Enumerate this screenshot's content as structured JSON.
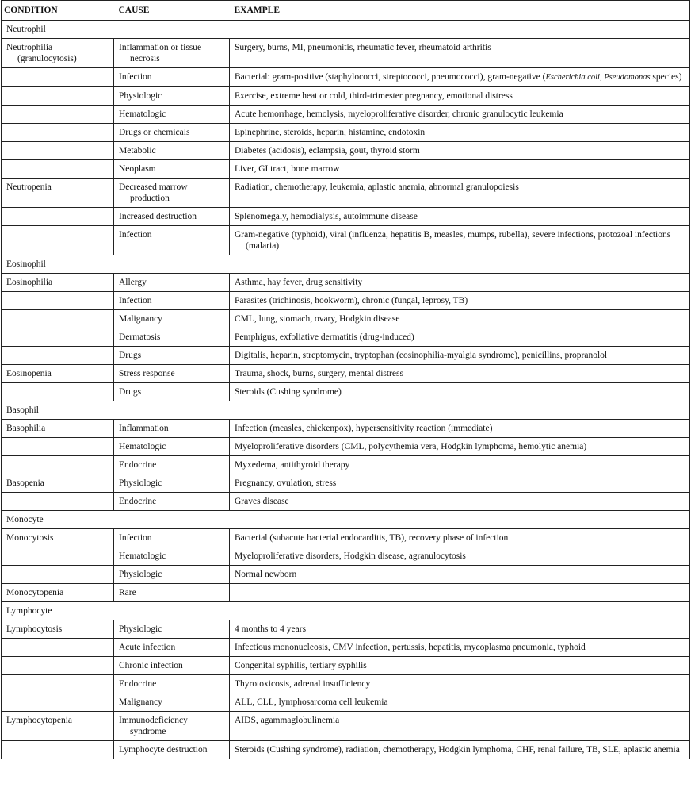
{
  "headers": {
    "condition": "CONDITION",
    "cause": "CAUSE",
    "example": "EXAMPLE"
  },
  "rows": [
    {
      "section": "Neutrophil"
    },
    {
      "condition": "Neutrophilia (granulocytosis)",
      "cause": "Inflammation or tissue necrosis",
      "example": "Surgery, burns, MI, pneumonitis, rheumatic fever, rheumatoid arthritis"
    },
    {
      "condition": "",
      "cause": "Infection",
      "example": "Bacterial: gram-positive (staphylococci, streptococci, pneumococci), gram-negative (",
      "example_italic": "Escherichia coli, Pseudomonas",
      "example_after": " species)"
    },
    {
      "condition": "",
      "cause": "Physiologic",
      "example": "Exercise, extreme heat or cold, third-trimester pregnancy, emotional distress"
    },
    {
      "condition": "",
      "cause": "Hematologic",
      "example": "Acute hemorrhage, hemolysis, myeloproliferative disorder, chronic granulocytic leukemia"
    },
    {
      "condition": "",
      "cause": "Drugs or chemicals",
      "example": "Epinephrine, steroids, heparin, histamine, endotoxin"
    },
    {
      "condition": "",
      "cause": "Metabolic",
      "example": "Diabetes (acidosis), eclampsia, gout, thyroid storm"
    },
    {
      "condition": "",
      "cause": "Neoplasm",
      "example": "Liver, GI tract, bone marrow"
    },
    {
      "condition": "Neutropenia",
      "cause": "Decreased marrow production",
      "example": "Radiation, chemotherapy, leukemia, aplastic anemia, abnormal granulopoiesis"
    },
    {
      "condition": "",
      "cause": "Increased destruction",
      "example": "Splenomegaly, hemodialysis, autoimmune disease"
    },
    {
      "condition": "",
      "cause": "Infection",
      "example": "Gram-negative (typhoid), viral (influenza, hepatitis B, measles, mumps, rubella), severe infections, protozoal infections (malaria)"
    },
    {
      "section": "Eosinophil"
    },
    {
      "condition": "Eosinophilia",
      "cause": "Allergy",
      "example": "Asthma, hay fever, drug sensitivity"
    },
    {
      "condition": "",
      "cause": "Infection",
      "example": "Parasites (trichinosis, hookworm), chronic (fungal, leprosy, TB)"
    },
    {
      "condition": "",
      "cause": "Malignancy",
      "example": "CML, lung, stomach, ovary, Hodgkin disease"
    },
    {
      "condition": "",
      "cause": "Dermatosis",
      "example": "Pemphigus, exfoliative dermatitis (drug-induced)"
    },
    {
      "condition": "",
      "cause": "Drugs",
      "example": "Digitalis, heparin, streptomycin, tryptophan (eosinophilia-myalgia syndrome), penicillins, propranolol"
    },
    {
      "condition": "Eosinopenia",
      "cause": "Stress response",
      "example": "Trauma, shock, burns, surgery, mental distress"
    },
    {
      "condition": "",
      "cause": "Drugs",
      "example": "Steroids (Cushing syndrome)"
    },
    {
      "section": "Basophil"
    },
    {
      "condition": "Basophilia",
      "cause": "Inflammation",
      "example": "Infection (measles, chickenpox), hypersensitivity reaction (immediate)"
    },
    {
      "condition": "",
      "cause": "Hematologic",
      "example": "Myeloproliferative disorders (CML, polycythemia vera, Hodgkin lymphoma, hemolytic anemia)"
    },
    {
      "condition": "",
      "cause": "Endocrine",
      "example": "Myxedema, antithyroid therapy"
    },
    {
      "condition": "Basopenia",
      "cause": "Physiologic",
      "example": "Pregnancy, ovulation, stress"
    },
    {
      "condition": "",
      "cause": "Endocrine",
      "example": "Graves disease"
    },
    {
      "section": "Monocyte"
    },
    {
      "condition": "Monocytosis",
      "cause": "Infection",
      "example": "Bacterial (subacute bacterial endocarditis, TB), recovery phase of infection"
    },
    {
      "condition": "",
      "cause": "Hematologic",
      "example": "Myeloproliferative disorders, Hodgkin disease, agranulocytosis"
    },
    {
      "condition": "",
      "cause": "Physiologic",
      "example": "Normal newborn"
    },
    {
      "condition": "Monocytopenia",
      "cause": "Rare",
      "example": ""
    },
    {
      "section": "Lymphocyte"
    },
    {
      "condition": "Lymphocytosis",
      "cause": "Physiologic",
      "example": "4 months to 4 years"
    },
    {
      "condition": "",
      "cause": "Acute infection",
      "example": "Infectious mononucleosis, CMV infection, pertussis, hepatitis, mycoplasma pneumonia, typhoid"
    },
    {
      "condition": "",
      "cause": "Chronic infection",
      "example": "Congenital syphilis, tertiary syphilis"
    },
    {
      "condition": "",
      "cause": "Endocrine",
      "example": "Thyrotoxicosis, adrenal insufficiency"
    },
    {
      "condition": "",
      "cause": "Malignancy",
      "example": "ALL, CLL, lymphosarcoma cell leukemia"
    },
    {
      "condition": "Lymphocytopenia",
      "cause": "Immunodeficiency syndrome",
      "example": "AIDS, agammaglobulinemia"
    },
    {
      "condition": "",
      "cause": "Lymphocyte destruction",
      "example": "Steroids (Cushing syndrome), radiation, chemotherapy, Hodgkin lymphoma, CHF, renal failure, TB, SLE, aplastic anemia"
    }
  ]
}
